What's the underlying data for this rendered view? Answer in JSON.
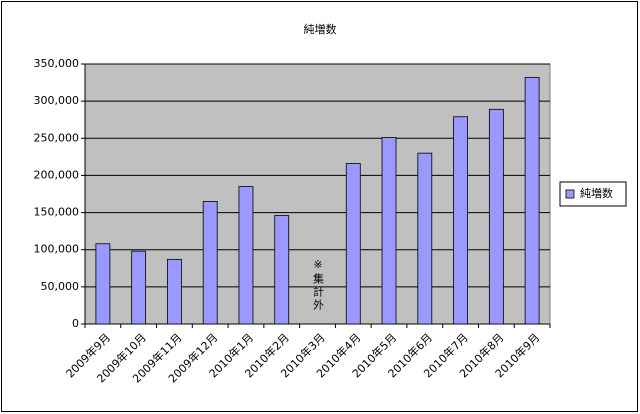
{
  "chart_data": {
    "type": "bar",
    "title": "純増数",
    "categories": [
      "2009年9月",
      "2009年10月",
      "2009年11月",
      "2009年12月",
      "2010年1月",
      "2010年2月",
      "2010年3月",
      "2010年4月",
      "2010年5月",
      "2010年6月",
      "2010年7月",
      "2010年8月",
      "2010年9月"
    ],
    "series": [
      {
        "name": "純増数",
        "color": "#9999ff",
        "values": [
          108000,
          98000,
          87000,
          165000,
          185000,
          146000,
          null,
          216000,
          251000,
          230000,
          279000,
          289000,
          332000
        ]
      }
    ],
    "annotation": "※集計外",
    "ylim": [
      0,
      350000
    ],
    "yticks": [
      0,
      {
        "value": 50000,
        "label": "50,000"
      },
      {
        "value": 100000,
        "label": "100,000"
      },
      {
        "value": 150000,
        "label": "150,000"
      },
      {
        "value": 200000,
        "label": "200,000"
      },
      {
        "value": 250000,
        "label": "250,000"
      },
      {
        "value": 300000,
        "label": "300,000"
      },
      {
        "value": 350000,
        "label": "350,000"
      }
    ],
    "grid": true,
    "legend": "right"
  }
}
